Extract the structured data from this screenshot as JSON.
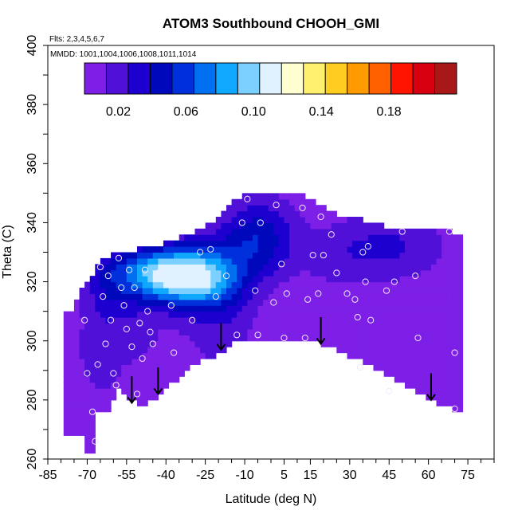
{
  "chart_data": {
    "type": "heatmap",
    "title": "ATOM3 Southbound CHOOH_GMI",
    "flights_label": "Flts: 2,3,4,5,6,7",
    "dates_label": "MMDD: 1001,1004,1006,1008,1011,1014",
    "xlabel": "Latitude (deg N)",
    "ylabel": "Theta (C)",
    "xlim": [
      -85,
      85
    ],
    "ylim": [
      260,
      400
    ],
    "x_ticks": [
      -85,
      -70,
      -55,
      -40,
      -25,
      -10,
      5,
      15,
      30,
      45,
      60,
      75
    ],
    "y_ticks": [
      260,
      280,
      300,
      320,
      340,
      360,
      380,
      400
    ],
    "colorbar": {
      "range": [
        0,
        0.22
      ],
      "tick_values": [
        0.02,
        0.06,
        0.1,
        0.14,
        0.18
      ],
      "tick_labels": [
        "0.02",
        "0.06",
        "0.10",
        "0.14",
        "0.18"
      ],
      "colors": [
        "#7d1fe6",
        "#5010d8",
        "#1d00d0",
        "#0008bc",
        "#0030dc",
        "#0070f0",
        "#10a8ff",
        "#7cd0ff",
        "#e0f2ff",
        "#ffffd0",
        "#fff070",
        "#ffcc20",
        "#ff9a00",
        "#ff6000",
        "#ff1400",
        "#d80010",
        "#a81818"
      ]
    },
    "arrows": [
      {
        "lat": -53,
        "theta": 280
      },
      {
        "lat": -43,
        "theta": 283
      },
      {
        "lat": -19,
        "theta": 298
      },
      {
        "lat": 19,
        "theta": 300
      },
      {
        "lat": 61,
        "theta": 281
      }
    ],
    "observations": [
      {
        "lat": -71,
        "theta": 307
      },
      {
        "lat": -70,
        "theta": 289
      },
      {
        "lat": -68,
        "theta": 276
      },
      {
        "lat": -67,
        "theta": 266
      },
      {
        "lat": -66,
        "theta": 292
      },
      {
        "lat": -65,
        "theta": 325
      },
      {
        "lat": -64,
        "theta": 315
      },
      {
        "lat": -63,
        "theta": 299
      },
      {
        "lat": -62,
        "theta": 322
      },
      {
        "lat": -61,
        "theta": 307
      },
      {
        "lat": -60,
        "theta": 289
      },
      {
        "lat": -59,
        "theta": 285
      },
      {
        "lat": -58,
        "theta": 328
      },
      {
        "lat": -57,
        "theta": 318
      },
      {
        "lat": -56,
        "theta": 312
      },
      {
        "lat": -55,
        "theta": 304
      },
      {
        "lat": -54,
        "theta": 324
      },
      {
        "lat": -53,
        "theta": 298
      },
      {
        "lat": -52,
        "theta": 318
      },
      {
        "lat": -51,
        "theta": 282
      },
      {
        "lat": -50,
        "theta": 306
      },
      {
        "lat": -49,
        "theta": 294
      },
      {
        "lat": -48,
        "theta": 324
      },
      {
        "lat": -47,
        "theta": 310
      },
      {
        "lat": -46,
        "theta": 303
      },
      {
        "lat": -45,
        "theta": 299
      },
      {
        "lat": -43,
        "theta": 323
      },
      {
        "lat": -38,
        "theta": 312
      },
      {
        "lat": -37,
        "theta": 296
      },
      {
        "lat": -30,
        "theta": 307
      },
      {
        "lat": -27,
        "theta": 330
      },
      {
        "lat": -23,
        "theta": 331
      },
      {
        "lat": -21,
        "theta": 315
      },
      {
        "lat": -17,
        "theta": 322
      },
      {
        "lat": -13,
        "theta": 302
      },
      {
        "lat": -11,
        "theta": 340
      },
      {
        "lat": -9,
        "theta": 348
      },
      {
        "lat": -6,
        "theta": 317
      },
      {
        "lat": -5,
        "theta": 302
      },
      {
        "lat": -4,
        "theta": 340
      },
      {
        "lat": 1,
        "theta": 313
      },
      {
        "lat": 2,
        "theta": 346
      },
      {
        "lat": 4,
        "theta": 326
      },
      {
        "lat": 5,
        "theta": 301
      },
      {
        "lat": 6,
        "theta": 316
      },
      {
        "lat": 12,
        "theta": 345
      },
      {
        "lat": 13,
        "theta": 301
      },
      {
        "lat": 14,
        "theta": 314
      },
      {
        "lat": 16,
        "theta": 329
      },
      {
        "lat": 18,
        "theta": 316
      },
      {
        "lat": 19,
        "theta": 342
      },
      {
        "lat": 20,
        "theta": 329
      },
      {
        "lat": 23,
        "theta": 336
      },
      {
        "lat": 25,
        "theta": 323
      },
      {
        "lat": 29,
        "theta": 316
      },
      {
        "lat": 32,
        "theta": 314
      },
      {
        "lat": 33,
        "theta": 308
      },
      {
        "lat": 34,
        "theta": 291
      },
      {
        "lat": 35,
        "theta": 330
      },
      {
        "lat": 36,
        "theta": 320
      },
      {
        "lat": 37,
        "theta": 332
      },
      {
        "lat": 38,
        "theta": 307
      },
      {
        "lat": 44,
        "theta": 317
      },
      {
        "lat": 45,
        "theta": 283
      },
      {
        "lat": 47,
        "theta": 320
      },
      {
        "lat": 50,
        "theta": 337
      },
      {
        "lat": 55,
        "theta": 322
      },
      {
        "lat": 56,
        "theta": 301
      },
      {
        "lat": 68,
        "theta": 337
      },
      {
        "lat": 70,
        "theta": 296
      },
      {
        "lat": 70,
        "theta": 277
      }
    ]
  }
}
